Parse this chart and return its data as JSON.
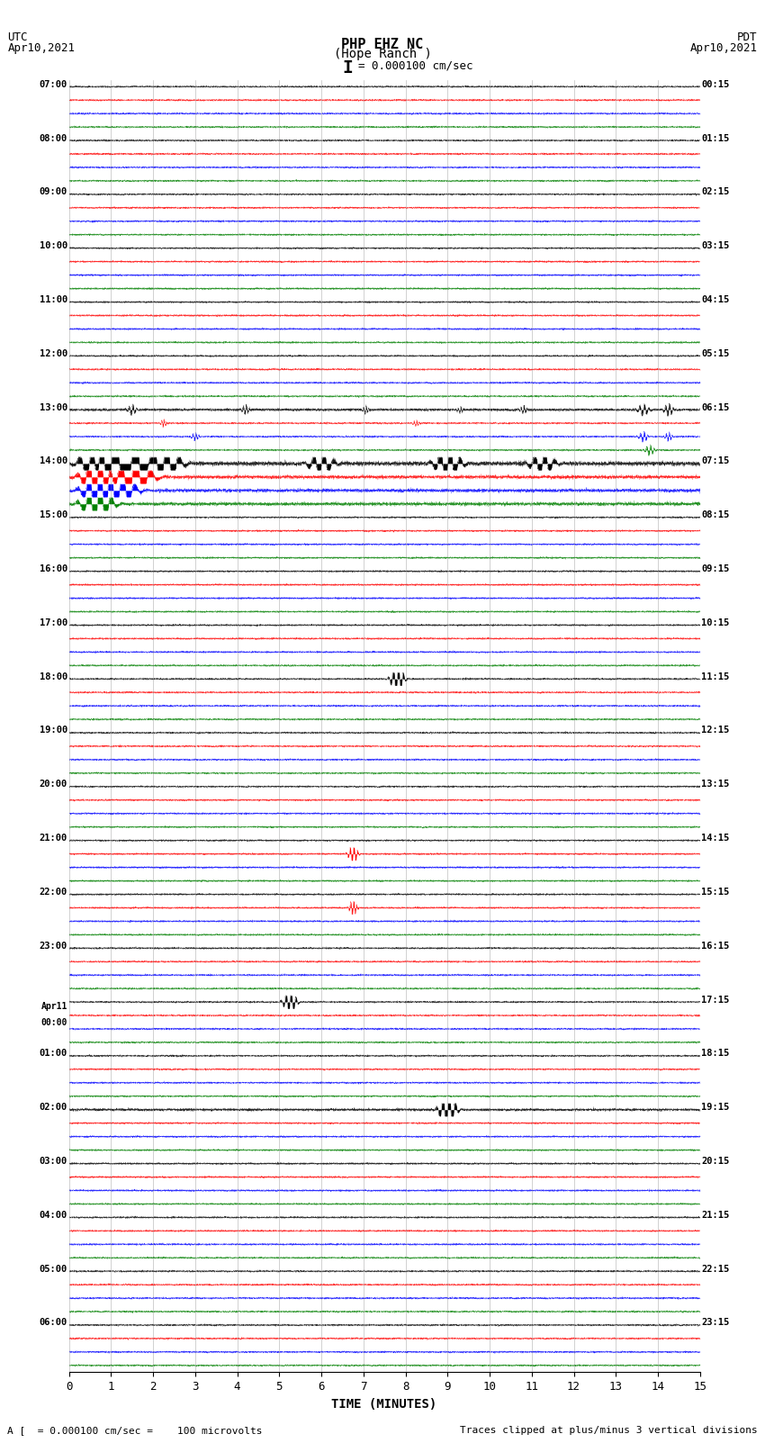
{
  "title_line1": "PHP EHZ NC",
  "title_line2": "(Hope Ranch )",
  "scale_label": "I = 0.000100 cm/sec",
  "footer_left": "A [  = 0.000100 cm/sec =    100 microvolts",
  "footer_right": "Traces clipped at plus/minus 3 vertical divisions",
  "bg_color": "#ffffff",
  "trace_colors": [
    "black",
    "red",
    "blue",
    "green"
  ],
  "num_rows": 24,
  "minutes_per_row": 15,
  "fig_width": 8.5,
  "fig_height": 16.13,
  "dpi": 100,
  "left_times_utc": [
    "07:00",
    "08:00",
    "09:00",
    "10:00",
    "11:00",
    "12:00",
    "13:00",
    "14:00",
    "15:00",
    "16:00",
    "17:00",
    "18:00",
    "19:00",
    "20:00",
    "21:00",
    "22:00",
    "23:00",
    "Apr11\n00:00",
    "01:00",
    "02:00",
    "03:00",
    "04:00",
    "05:00",
    "06:00"
  ],
  "right_times_pdt": [
    "00:15",
    "01:15",
    "02:15",
    "03:15",
    "04:15",
    "05:15",
    "06:15",
    "07:15",
    "08:15",
    "09:15",
    "10:15",
    "11:15",
    "12:15",
    "13:15",
    "14:15",
    "15:15",
    "16:15",
    "17:15",
    "18:15",
    "19:15",
    "20:15",
    "21:15",
    "22:15",
    "23:15"
  ],
  "xlabel": "TIME (MINUTES)"
}
